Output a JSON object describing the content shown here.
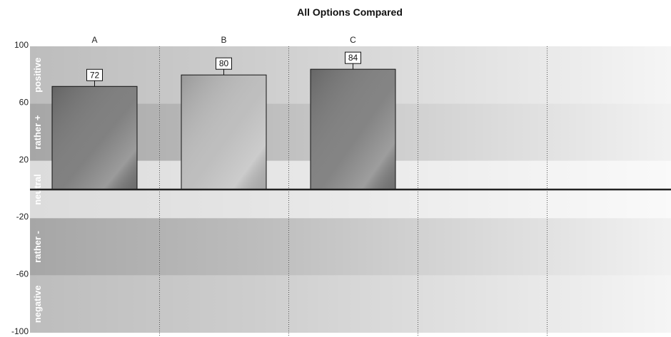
{
  "chart_data": {
    "type": "bar",
    "title": "All Options Compared",
    "xlabel": "",
    "ylabel": "",
    "categories": [
      "A",
      "B",
      "C"
    ],
    "values": [
      72,
      80,
      84
    ],
    "ylim": [
      -100,
      100
    ],
    "yticks": [
      100,
      60,
      20,
      -20,
      -60,
      -100
    ],
    "grid": "vertical dotted",
    "bands": [
      {
        "label": "positive",
        "from": 60,
        "to": 100,
        "color": "#bdbdbd"
      },
      {
        "label": "rather +",
        "from": 20,
        "to": 60,
        "color": "#a6a6a6"
      },
      {
        "label": "neutral",
        "from": -20,
        "to": 20,
        "color": "#dcdcdc"
      },
      {
        "label": "rather -",
        "from": -60,
        "to": -20,
        "color": "#a6a6a6"
      },
      {
        "label": "negative",
        "from": -100,
        "to": -60,
        "color": "#bdbdbd"
      }
    ],
    "bar_colors": [
      "#7a7a7a",
      "#bbbbbb",
      "#7d7d7d"
    ]
  }
}
